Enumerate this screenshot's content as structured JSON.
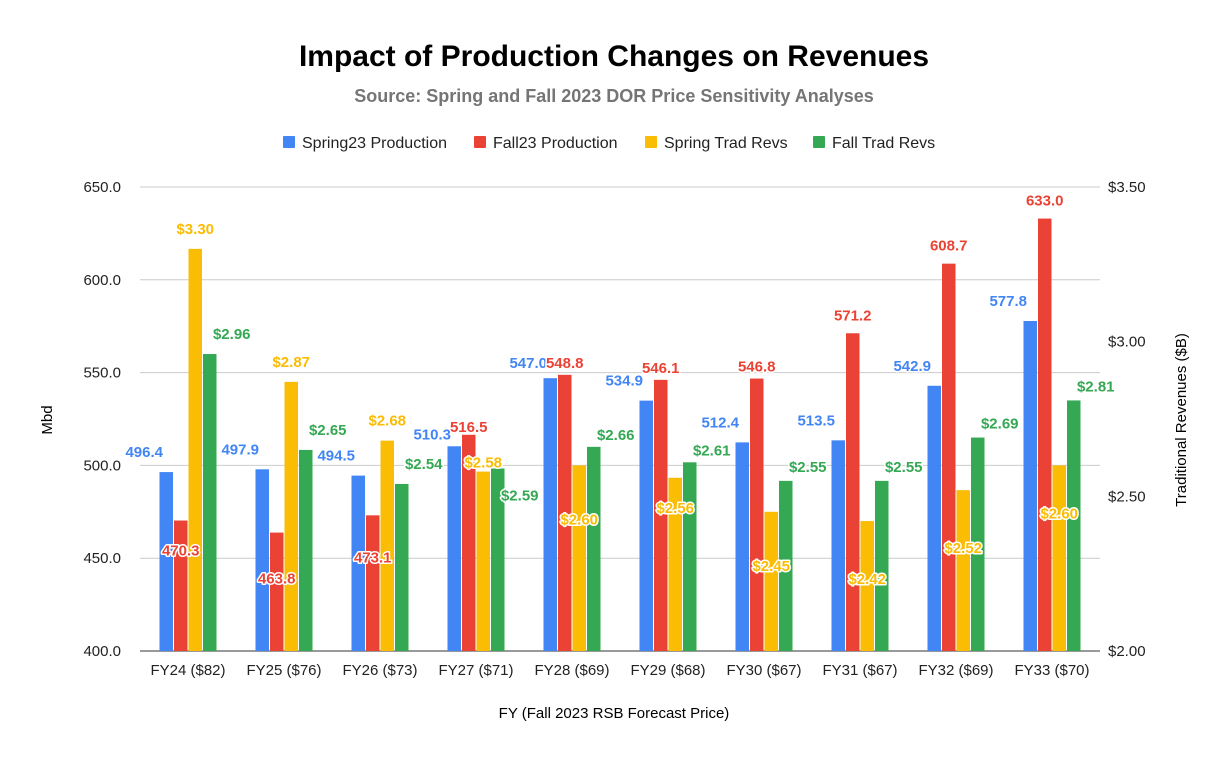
{
  "chart_data": {
    "type": "bar",
    "title": "Impact of Production Changes on Revenues",
    "subtitle": "Source: Spring and Fall 2023 DOR Price Sensitivity Analyses",
    "xlabel": "FY (Fall 2023 RSB Forecast Price)",
    "ylabel_left": "Mbd",
    "ylabel_right": "Traditional Revenues ($B)",
    "ylim_left": [
      400,
      650
    ],
    "ylim_right": [
      2.0,
      3.5
    ],
    "yticks_left": [
      "400.0",
      "450.0",
      "500.0",
      "550.0",
      "600.0",
      "650.0"
    ],
    "yticks_right": [
      "$2.00",
      "$2.50",
      "$3.00",
      "$3.50"
    ],
    "grid": true,
    "legend_position": "top",
    "categories": [
      "FY24 ($82)",
      "FY25 ($76)",
      "FY26 ($73)",
      "FY27 ($71)",
      "FY28 ($69)",
      "FY29 ($68)",
      "FY30 ($67)",
      "FY31 ($67)",
      "FY32 ($69)",
      "FY33 ($70)"
    ],
    "series": [
      {
        "name": "Spring23 Production",
        "axis": "left",
        "color": "#4285F4",
        "values": [
          496.4,
          497.9,
          494.5,
          510.3,
          547.0,
          534.9,
          512.4,
          513.5,
          542.9,
          577.8
        ],
        "labels": [
          "496.4",
          "497.9",
          "494.5",
          "510.3",
          "547.0",
          "534.9",
          "512.4",
          "513.5",
          "542.9",
          "577.8"
        ]
      },
      {
        "name": "Fall23 Production",
        "axis": "left",
        "color": "#EA4335",
        "values": [
          470.3,
          463.8,
          473.1,
          516.5,
          548.8,
          546.1,
          546.8,
          571.2,
          608.7,
          633.0
        ],
        "labels": [
          "470.3",
          "463.8",
          "473.1",
          "516.5",
          "548.8",
          "546.1",
          "546.8",
          "571.2",
          "608.7",
          "633.0"
        ]
      },
      {
        "name": "Spring Trad Revs",
        "axis": "right",
        "color": "#FBBC04",
        "values": [
          3.3,
          2.87,
          2.68,
          2.58,
          2.6,
          2.56,
          2.45,
          2.42,
          2.52,
          2.6
        ],
        "labels": [
          "$3.30",
          "$2.87",
          "$2.68",
          "$2.58",
          "$2.60",
          "$2.56",
          "$2.45",
          "$2.42",
          "$2.52",
          "$2.60"
        ]
      },
      {
        "name": "Fall Trad Revs",
        "axis": "right",
        "color": "#34A853",
        "values": [
          2.96,
          2.65,
          2.54,
          2.59,
          2.66,
          2.61,
          2.55,
          2.55,
          2.69,
          2.81
        ],
        "labels": [
          "$2.96",
          "$2.65",
          "$2.54",
          "$2.59",
          "$2.66",
          "$2.61",
          "$2.55",
          "$2.55",
          "$2.69",
          "$2.81"
        ]
      }
    ]
  }
}
